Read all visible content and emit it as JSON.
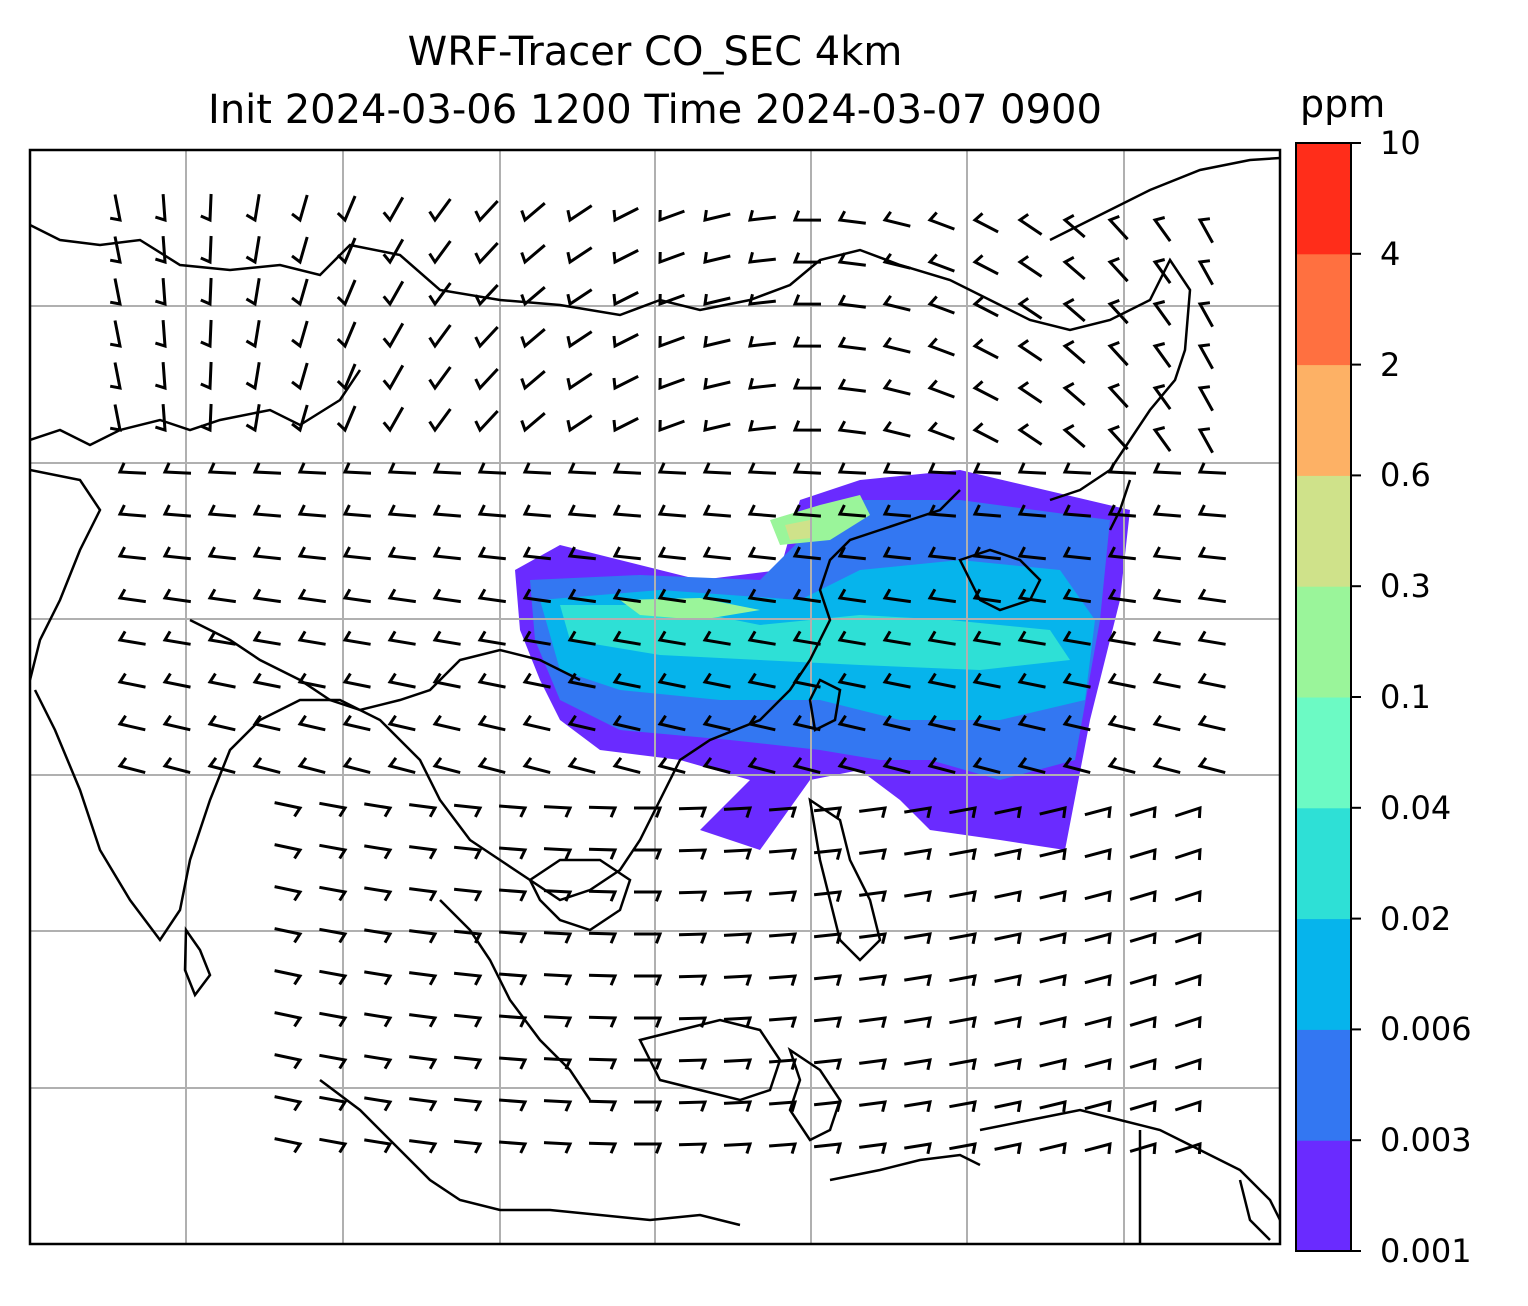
{
  "title": {
    "line1": "WRF-Tracer CO_SEC 4km",
    "line2": "Init 2024-03-06 1200 Time 2024-03-07 0900"
  },
  "colorbar": {
    "unit": "ppm",
    "levels": [
      "0.001",
      "0.003",
      "0.006",
      "0.02",
      "0.04",
      "0.1",
      "0.3",
      "0.6",
      "2",
      "4",
      "10"
    ],
    "colors": [
      "#6a2bff",
      "#3377f2",
      "#06b4ec",
      "#2ee0d6",
      "#6cfac4",
      "#9af59a",
      "#cfe28a",
      "#fdb165",
      "#ff7040",
      "#ff2d1a"
    ]
  },
  "map": {
    "field": "CO_SEC tracer",
    "gridlines": true,
    "wind_barbs": true
  }
}
